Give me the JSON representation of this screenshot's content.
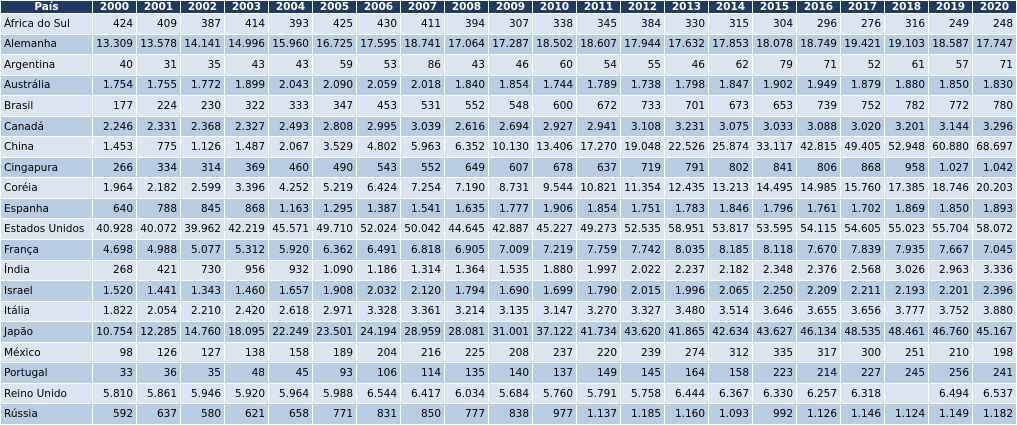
{
  "table": {
    "header": [
      "País",
      "2000",
      "2001",
      "2002",
      "2003",
      "2004",
      "2005",
      "2006",
      "2007",
      "2008",
      "2009",
      "2010",
      "2011",
      "2012",
      "2013",
      "2014",
      "2015",
      "2016",
      "2017",
      "2018",
      "2019",
      "2020"
    ],
    "rows": [
      [
        "África do Sul",
        "424",
        "409",
        "387",
        "414",
        "393",
        "425",
        "430",
        "411",
        "394",
        "307",
        "338",
        "345",
        "384",
        "330",
        "315",
        "304",
        "296",
        "276",
        "316",
        "249",
        "248"
      ],
      [
        "Alemanha",
        "13.309",
        "13.578",
        "14.141",
        "14.996",
        "15.960",
        "16.725",
        "17.595",
        "18.741",
        "17.064",
        "17.287",
        "18.502",
        "18.607",
        "17.944",
        "17.632",
        "17.853",
        "18.078",
        "18.749",
        "19.421",
        "19.103",
        "18.587",
        "17.747"
      ],
      [
        "Argentina",
        "40",
        "31",
        "35",
        "43",
        "43",
        "59",
        "53",
        "86",
        "43",
        "46",
        "60",
        "54",
        "55",
        "46",
        "62",
        "79",
        "71",
        "52",
        "61",
        "57",
        "71"
      ],
      [
        "Austrália",
        "1.754",
        "1.755",
        "1.772",
        "1.899",
        "2.043",
        "2.090",
        "2.059",
        "2.018",
        "1.840",
        "1.854",
        "1.744",
        "1.789",
        "1.738",
        "1.798",
        "1.847",
        "1.902",
        "1.949",
        "1.879",
        "1.880",
        "1.850",
        "1.830"
      ],
      [
        "Brasil",
        "177",
        "224",
        "230",
        "322",
        "333",
        "347",
        "453",
        "531",
        "552",
        "548",
        "600",
        "672",
        "733",
        "701",
        "673",
        "653",
        "739",
        "752",
        "782",
        "772",
        "780"
      ],
      [
        "Canadá",
        "2.246",
        "2.331",
        "2.368",
        "2.327",
        "2.493",
        "2.808",
        "2.995",
        "3.039",
        "2.616",
        "2.694",
        "2.927",
        "2.941",
        "3.108",
        "3.231",
        "3.075",
        "3.033",
        "3.088",
        "3.020",
        "3.201",
        "3.144",
        "3.296"
      ],
      [
        "China",
        "1.453",
        "775",
        "1.126",
        "1.487",
        "2.067",
        "3.529",
        "4.802",
        "5.963",
        "6.352",
        "10.130",
        "13.406",
        "17.270",
        "19.048",
        "22.526",
        "25.874",
        "33.117",
        "42.815",
        "49.405",
        "52.948",
        "60.880",
        "68.697"
      ],
      [
        "Cingapura",
        "266",
        "334",
        "314",
        "369",
        "460",
        "490",
        "543",
        "552",
        "649",
        "607",
        "678",
        "637",
        "719",
        "791",
        "802",
        "841",
        "806",
        "868",
        "958",
        "1.027",
        "1.042"
      ],
      [
        "Coréia",
        "1.964",
        "2.182",
        "2.599",
        "3.396",
        "4.252",
        "5.219",
        "6.424",
        "7.254",
        "7.190",
        "8.731",
        "9.544",
        "10.821",
        "11.354",
        "12.435",
        "13.213",
        "14.495",
        "14.985",
        "15.760",
        "17.385",
        "18.746",
        "20.203"
      ],
      [
        "Espanha",
        "640",
        "788",
        "845",
        "868",
        "1.163",
        "1.295",
        "1.387",
        "1.541",
        "1.635",
        "1.777",
        "1.906",
        "1.854",
        "1.751",
        "1.783",
        "1.846",
        "1.796",
        "1.761",
        "1.702",
        "1.869",
        "1.850",
        "1.893"
      ],
      [
        "Estados Unidos",
        "40.928",
        "40.072",
        "39.962",
        "42.219",
        "45.571",
        "49.710",
        "52.024",
        "50.042",
        "44.645",
        "42.887",
        "45.227",
        "49.273",
        "52.535",
        "58.951",
        "53.817",
        "53.595",
        "54.115",
        "54.605",
        "55.023",
        "55.704",
        "58.072"
      ],
      [
        "França",
        "4.698",
        "4.988",
        "5.077",
        "5.312",
        "5.920",
        "6.362",
        "6.491",
        "6.818",
        "6.905",
        "7.009",
        "7.219",
        "7.759",
        "7.742",
        "8.035",
        "8.185",
        "8.118",
        "7.670",
        "7.839",
        "7.935",
        "7.667",
        "7.045"
      ],
      [
        "Índia",
        "268",
        "421",
        "730",
        "956",
        "932",
        "1.090",
        "1.186",
        "1.314",
        "1.364",
        "1.535",
        "1.880",
        "1.997",
        "2.022",
        "2.237",
        "2.182",
        "2.348",
        "2.376",
        "2.568",
        "3.026",
        "2.963",
        "3.336"
      ],
      [
        "Israel",
        "1.520",
        "1.441",
        "1.343",
        "1.460",
        "1.657",
        "1.908",
        "2.032",
        "2.120",
        "1.794",
        "1.690",
        "1.699",
        "1.790",
        "2.015",
        "1.996",
        "2.065",
        "2.250",
        "2.209",
        "2.211",
        "2.193",
        "2.201",
        "2.396"
      ],
      [
        "Itália",
        "1.822",
        "2.054",
        "2.210",
        "2.420",
        "2.618",
        "2.971",
        "3.328",
        "3.361",
        "3.214",
        "3.135",
        "3.147",
        "3.270",
        "3.327",
        "3.480",
        "3.514",
        "3.646",
        "3.655",
        "3.656",
        "3.777",
        "3.752",
        "3.880"
      ],
      [
        "Japão",
        "10.754",
        "12.285",
        "14.760",
        "18.095",
        "22.249",
        "23.501",
        "24.194",
        "28.959",
        "28.081",
        "31.001",
        "37.122",
        "41.734",
        "43.620",
        "41.865",
        "42.634",
        "43.627",
        "46.134",
        "48.535",
        "48.461",
        "46.760",
        "45.167"
      ],
      [
        "México",
        "98",
        "126",
        "127",
        "138",
        "158",
        "189",
        "204",
        "216",
        "225",
        "208",
        "237",
        "220",
        "239",
        "274",
        "312",
        "335",
        "317",
        "300",
        "251",
        "210",
        "198"
      ],
      [
        "Portugal",
        "33",
        "36",
        "35",
        "48",
        "45",
        "93",
        "106",
        "114",
        "135",
        "140",
        "137",
        "149",
        "145",
        "164",
        "158",
        "223",
        "214",
        "227",
        "245",
        "256",
        "241"
      ],
      [
        "Reino Unido",
        "5.810",
        "5.861",
        "5.946",
        "5.920",
        "5.964",
        "5.988",
        "6.544",
        "6.417",
        "6.034",
        "5.684",
        "5.760",
        "5.791",
        "5.758",
        "6.444",
        "6.367",
        "6.330",
        "6.257",
        "6.318",
        null,
        "6.494",
        "6.537"
      ],
      [
        "Rússia",
        "592",
        "637",
        "580",
        "621",
        "658",
        "771",
        "831",
        "850",
        "777",
        "838",
        "977",
        "1.137",
        "1.185",
        "1.160",
        "1.093",
        "992",
        "1.126",
        "1.146",
        "1.124",
        "1.149",
        "1.182"
      ]
    ]
  }
}
